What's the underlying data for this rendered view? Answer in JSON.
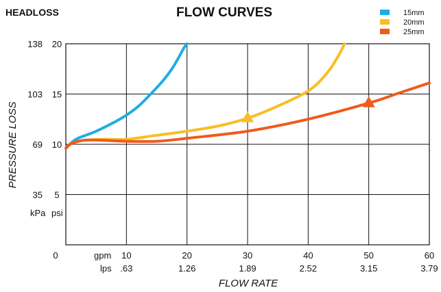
{
  "header_left": "HEADLOSS",
  "title": "FLOW CURVES",
  "y_axis_title": "PRESSURE LOSS",
  "x_axis_title": "FLOW RATE",
  "units": {
    "kpa": "kPa",
    "psi": "psi",
    "gpm": "gpm",
    "lps": "lps"
  },
  "colors": {
    "15mm": "#1fade4",
    "20mm": "#f7be27",
    "25mm": "#f05a1a",
    "grid": "#111111"
  },
  "chart_data": {
    "type": "line",
    "title": "FLOW CURVES",
    "xlabel": "FLOW RATE",
    "ylabel": "PRESSURE LOSS",
    "xlim": [
      0,
      60
    ],
    "ylim": [
      0,
      20
    ],
    "grid": true,
    "legend_position": "top-right",
    "x_ticks_gpm": [
      "10",
      "20",
      "30",
      "40",
      "50",
      "60"
    ],
    "x_ticks_lps": [
      ".63",
      "1.26",
      "1.89",
      "2.52",
      "3.15",
      "3.79"
    ],
    "x_zero_label": "0",
    "y_ticks_psi": [
      "5",
      "10",
      "15",
      "20"
    ],
    "y_ticks_kpa": [
      "35",
      "69",
      "103",
      "138"
    ],
    "series": [
      {
        "name": "15mm",
        "color": "#1fade4",
        "points": [
          [
            0,
            9.6
          ],
          [
            1,
            10.2
          ],
          [
            2,
            10.6
          ],
          [
            5,
            11.3
          ],
          [
            8,
            12.2
          ],
          [
            10,
            12.9
          ],
          [
            12,
            13.8
          ],
          [
            14,
            15.0
          ],
          [
            16,
            16.3
          ],
          [
            17.5,
            17.5
          ],
          [
            18.5,
            18.5
          ],
          [
            19.5,
            19.6
          ],
          [
            20,
            20
          ]
        ]
      },
      {
        "name": "20mm",
        "color": "#f7be27",
        "points": [
          [
            0,
            9.6
          ],
          [
            1,
            10.1
          ],
          [
            3,
            10.4
          ],
          [
            6,
            10.5
          ],
          [
            10,
            10.5
          ],
          [
            15,
            10.9
          ],
          [
            20,
            11.3
          ],
          [
            25,
            11.8
          ],
          [
            30,
            12.6
          ],
          [
            35,
            13.8
          ],
          [
            40,
            15.3
          ],
          [
            43,
            17.0
          ],
          [
            45,
            18.8
          ],
          [
            46,
            20
          ]
        ]
      },
      {
        "name": "25mm",
        "color": "#f05a1a",
        "points": [
          [
            0,
            9.6
          ],
          [
            1,
            10.1
          ],
          [
            3,
            10.4
          ],
          [
            6,
            10.4
          ],
          [
            10,
            10.3
          ],
          [
            15,
            10.3
          ],
          [
            20,
            10.6
          ],
          [
            30,
            11.3
          ],
          [
            40,
            12.5
          ],
          [
            50,
            14.1
          ],
          [
            55,
            15.1
          ],
          [
            60,
            16.1
          ]
        ]
      }
    ],
    "markers": [
      {
        "series": "20mm",
        "x": 30,
        "y": 12.6,
        "shape": "triangle"
      },
      {
        "series": "25mm",
        "x": 50,
        "y": 14.1,
        "shape": "triangle"
      }
    ]
  }
}
